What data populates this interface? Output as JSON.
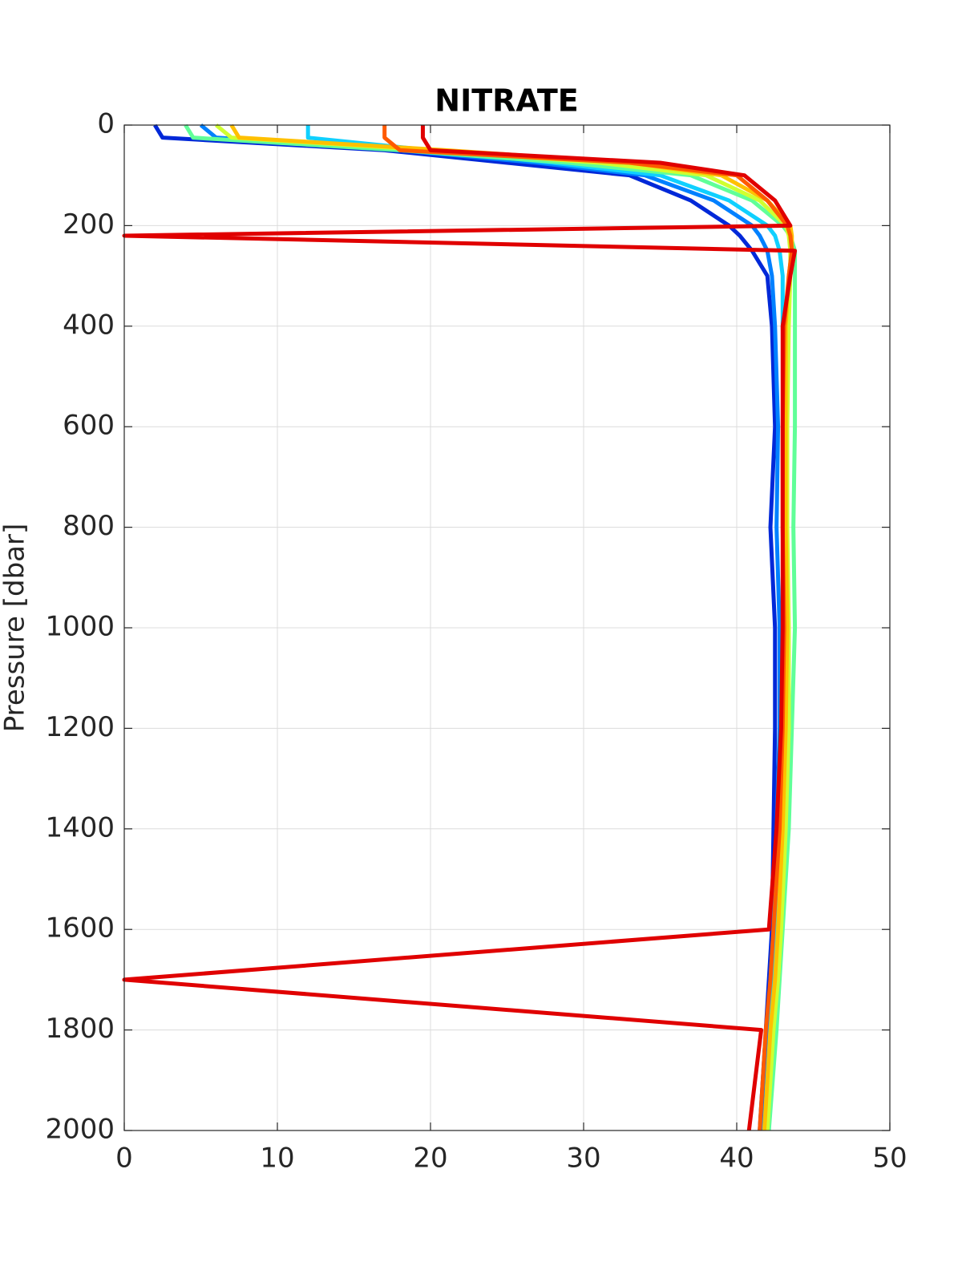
{
  "chart_data": {
    "type": "line",
    "title": "NITRATE",
    "y_label": "Pressure [dbar]",
    "y": [
      0,
      25,
      50,
      75,
      100,
      150,
      200,
      220,
      250,
      300,
      400,
      600,
      800,
      1000,
      1200,
      1400,
      1600,
      1700,
      1800,
      2000
    ],
    "y_reversed": true,
    "grid": true,
    "xlim": [
      0,
      50
    ],
    "xticks": [
      0,
      10,
      20,
      30,
      40,
      50
    ],
    "ylim": [
      0,
      2000
    ],
    "yticks": [
      0,
      200,
      400,
      600,
      800,
      1000,
      1200,
      1400,
      1600,
      1800,
      2000
    ],
    "series": [
      {
        "color": "#0028d8",
        "values": [
          2,
          2.5,
          17,
          25,
          33,
          37,
          39.5,
          40.2,
          41,
          42,
          42.3,
          42.5,
          42.2,
          42.5,
          42.5,
          42.4,
          42.3,
          42.1,
          41.9,
          41.5
        ]
      },
      {
        "color": "#0080ff",
        "values": [
          5,
          6,
          18,
          27,
          34,
          38.5,
          41,
          41.5,
          42,
          42.3,
          42.5,
          42.7,
          42.6,
          42.8,
          42.8,
          42.6,
          42.4,
          42.2,
          42,
          41.6
        ]
      },
      {
        "color": "#10d0ff",
        "values": [
          12,
          12,
          20,
          28,
          35,
          39.5,
          42,
          42.5,
          42.8,
          43,
          43,
          43.2,
          43.2,
          43.2,
          43.1,
          42.9,
          42.6,
          42.4,
          42.2,
          41.8
        ]
      },
      {
        "color": "#60ff98",
        "values": [
          4,
          4.5,
          18,
          29,
          37,
          41,
          43,
          43.5,
          43.8,
          43.8,
          43.8,
          43.8,
          43.7,
          43.8,
          43.6,
          43.4,
          43,
          42.8,
          42.6,
          42.1
        ]
      },
      {
        "color": "#d0ff30",
        "values": [
          6,
          7,
          20,
          31,
          38,
          41.5,
          43.2,
          43.4,
          43.5,
          43.5,
          43.4,
          43.3,
          43.3,
          43.4,
          43.4,
          43.2,
          42.9,
          42.7,
          42.4,
          42
        ]
      },
      {
        "color": "#ffc000",
        "values": [
          7,
          7.5,
          21,
          33,
          39,
          42,
          43.5,
          43.6,
          43.6,
          43.4,
          43.2,
          43.2,
          43.2,
          43.3,
          43.2,
          43,
          42.7,
          42.5,
          42.2,
          41.8
        ]
      },
      {
        "color": "#ff5a00",
        "values": [
          17,
          17,
          18,
          33,
          40,
          42,
          43.3,
          43.5,
          43.6,
          43.4,
          43.1,
          43,
          43,
          43.1,
          43,
          42.8,
          42.4,
          42.2,
          41.9,
          41.5
        ]
      },
      {
        "color": "#e00000",
        "values": [
          19.5,
          19.5,
          20,
          35,
          40.5,
          42.5,
          43.5,
          0,
          43.8,
          43.5,
          43,
          43,
          43,
          43,
          42.9,
          42.6,
          42.1,
          0,
          41.6,
          40.8
        ]
      }
    ]
  }
}
